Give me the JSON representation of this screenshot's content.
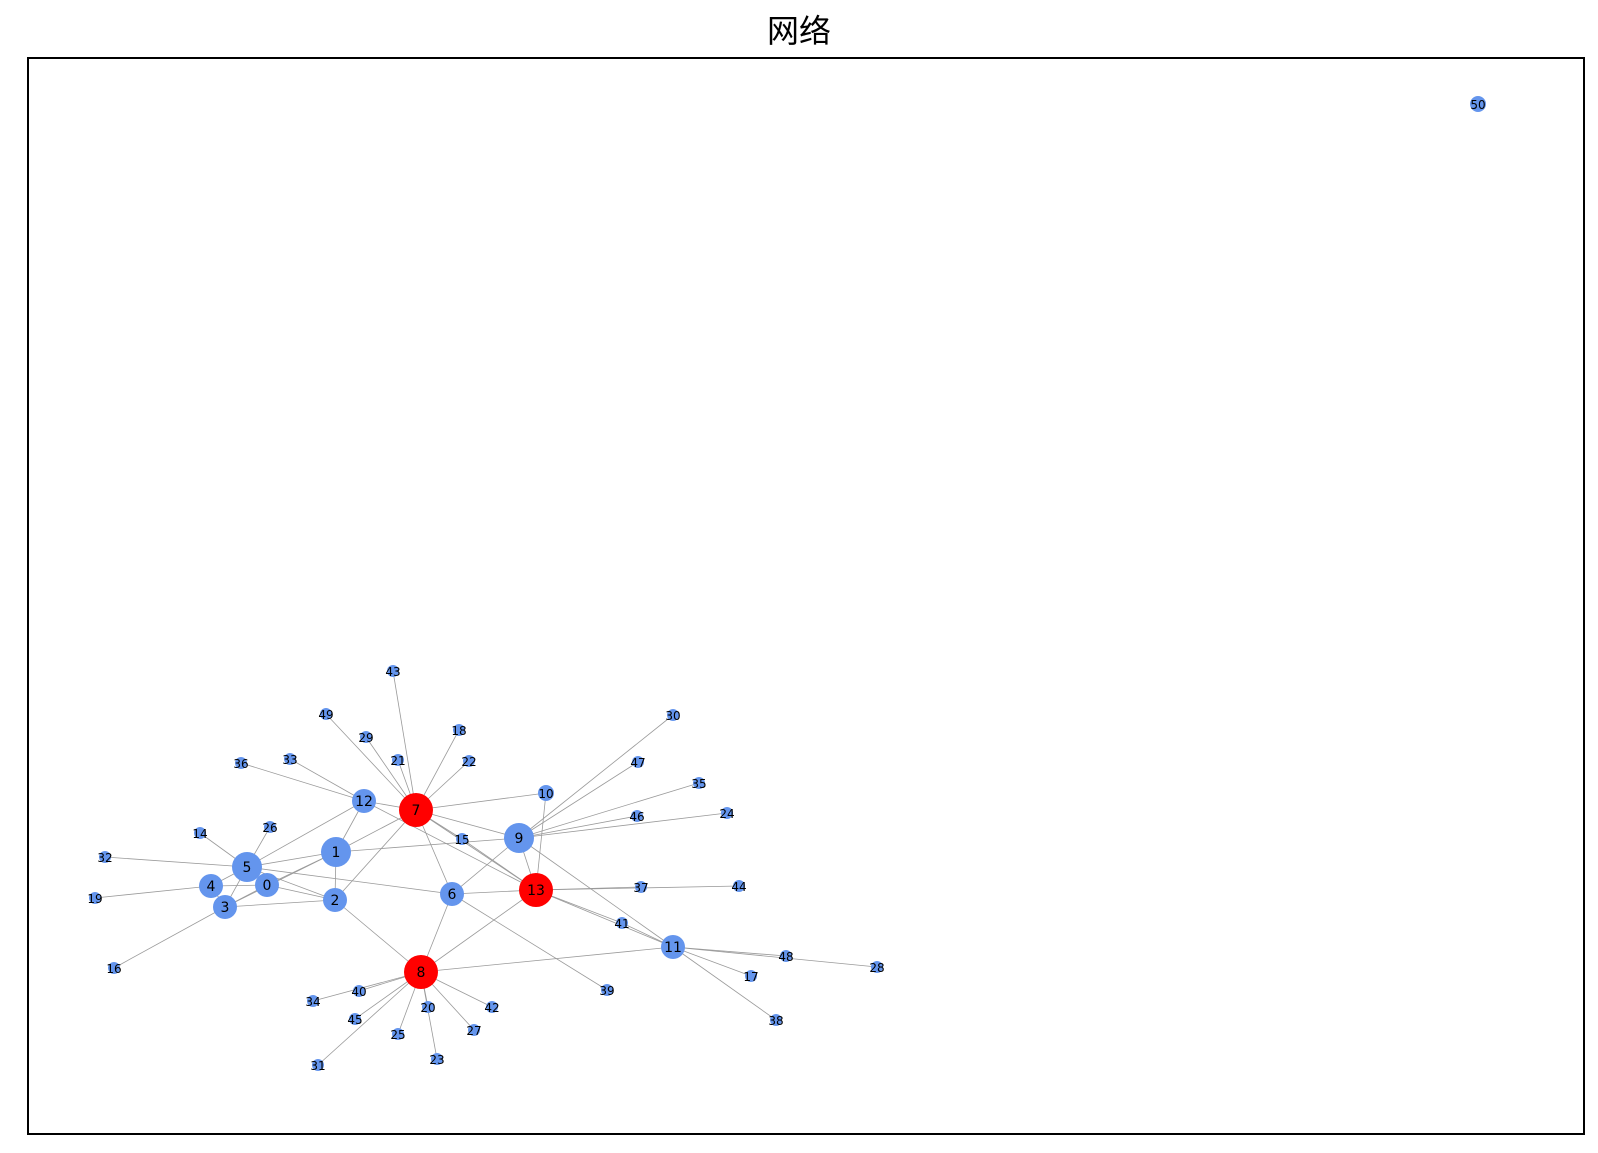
{
  "title": "网络",
  "colors": {
    "default_node": "#6495ED",
    "highlight_node": "#FF0000",
    "edge": "#9a9a9a"
  },
  "nodes": [
    {
      "id": "0",
      "size": "m",
      "color": "default"
    },
    {
      "id": "1",
      "size": "l",
      "color": "default"
    },
    {
      "id": "2",
      "size": "m",
      "color": "default"
    },
    {
      "id": "3",
      "size": "m",
      "color": "default"
    },
    {
      "id": "4",
      "size": "m",
      "color": "default"
    },
    {
      "id": "5",
      "size": "l",
      "color": "default"
    },
    {
      "id": "6",
      "size": "m",
      "color": "default"
    },
    {
      "id": "7",
      "size": "xl",
      "color": "highlight"
    },
    {
      "id": "8",
      "size": "xl",
      "color": "highlight"
    },
    {
      "id": "9",
      "size": "l",
      "color": "default"
    },
    {
      "id": "10",
      "size": "s",
      "color": "default"
    },
    {
      "id": "11",
      "size": "m",
      "color": "default"
    },
    {
      "id": "12",
      "size": "m",
      "color": "default"
    },
    {
      "id": "13",
      "size": "xl",
      "color": "highlight"
    },
    {
      "id": "14",
      "size": "xs",
      "color": "default"
    },
    {
      "id": "15",
      "size": "xs",
      "color": "default"
    },
    {
      "id": "16",
      "size": "xs",
      "color": "default"
    },
    {
      "id": "17",
      "size": "xs",
      "color": "default"
    },
    {
      "id": "18",
      "size": "xs",
      "color": "default"
    },
    {
      "id": "19",
      "size": "xs",
      "color": "default"
    },
    {
      "id": "20",
      "size": "xs",
      "color": "default"
    },
    {
      "id": "21",
      "size": "xs",
      "color": "default"
    },
    {
      "id": "22",
      "size": "xs",
      "color": "default"
    },
    {
      "id": "23",
      "size": "xs",
      "color": "default"
    },
    {
      "id": "24",
      "size": "xs",
      "color": "default"
    },
    {
      "id": "25",
      "size": "xs",
      "color": "default"
    },
    {
      "id": "26",
      "size": "xs",
      "color": "default"
    },
    {
      "id": "27",
      "size": "xs",
      "color": "default"
    },
    {
      "id": "28",
      "size": "xs",
      "color": "default"
    },
    {
      "id": "29",
      "size": "xs",
      "color": "default"
    },
    {
      "id": "30",
      "size": "xs",
      "color": "default"
    },
    {
      "id": "31",
      "size": "xs",
      "color": "default"
    },
    {
      "id": "32",
      "size": "xs",
      "color": "default"
    },
    {
      "id": "33",
      "size": "xs",
      "color": "default"
    },
    {
      "id": "34",
      "size": "xs",
      "color": "default"
    },
    {
      "id": "35",
      "size": "xs",
      "color": "default"
    },
    {
      "id": "36",
      "size": "xs",
      "color": "default"
    },
    {
      "id": "37",
      "size": "xs",
      "color": "default"
    },
    {
      "id": "38",
      "size": "xs",
      "color": "default"
    },
    {
      "id": "39",
      "size": "xs",
      "color": "default"
    },
    {
      "id": "40",
      "size": "xs",
      "color": "default"
    },
    {
      "id": "41",
      "size": "xs",
      "color": "default"
    },
    {
      "id": "42",
      "size": "xs",
      "color": "default"
    },
    {
      "id": "43",
      "size": "xs",
      "color": "default"
    },
    {
      "id": "44",
      "size": "xs",
      "color": "default"
    },
    {
      "id": "45",
      "size": "xs",
      "color": "default"
    },
    {
      "id": "46",
      "size": "xs",
      "color": "default"
    },
    {
      "id": "47",
      "size": "xs",
      "color": "default"
    },
    {
      "id": "48",
      "size": "xs",
      "color": "default"
    },
    {
      "id": "49",
      "size": "xs",
      "color": "default"
    },
    {
      "id": "50",
      "size": "s",
      "color": "default"
    }
  ],
  "edges": [
    [
      "0",
      "1"
    ],
    [
      "0",
      "2"
    ],
    [
      "0",
      "4"
    ],
    [
      "0",
      "5"
    ],
    [
      "0",
      "3"
    ],
    [
      "1",
      "2"
    ],
    [
      "1",
      "3"
    ],
    [
      "1",
      "5"
    ],
    [
      "1",
      "7"
    ],
    [
      "1",
      "9"
    ],
    [
      "1",
      "12"
    ],
    [
      "2",
      "3"
    ],
    [
      "2",
      "5"
    ],
    [
      "2",
      "7"
    ],
    [
      "2",
      "8"
    ],
    [
      "3",
      "4"
    ],
    [
      "3",
      "5"
    ],
    [
      "3",
      "16"
    ],
    [
      "4",
      "5"
    ],
    [
      "4",
      "19"
    ],
    [
      "5",
      "6"
    ],
    [
      "5",
      "14"
    ],
    [
      "5",
      "32"
    ],
    [
      "5",
      "26"
    ],
    [
      "5",
      "12"
    ],
    [
      "6",
      "7"
    ],
    [
      "6",
      "8"
    ],
    [
      "6",
      "9"
    ],
    [
      "6",
      "13"
    ],
    [
      "6",
      "39"
    ],
    [
      "7",
      "9"
    ],
    [
      "7",
      "10"
    ],
    [
      "7",
      "12"
    ],
    [
      "7",
      "13"
    ],
    [
      "7",
      "15"
    ],
    [
      "7",
      "18"
    ],
    [
      "7",
      "21"
    ],
    [
      "7",
      "22"
    ],
    [
      "7",
      "29"
    ],
    [
      "7",
      "43"
    ],
    [
      "7",
      "49"
    ],
    [
      "8",
      "11"
    ],
    [
      "8",
      "13"
    ],
    [
      "8",
      "20"
    ],
    [
      "8",
      "23"
    ],
    [
      "8",
      "25"
    ],
    [
      "8",
      "27"
    ],
    [
      "8",
      "31"
    ],
    [
      "8",
      "34"
    ],
    [
      "8",
      "40"
    ],
    [
      "8",
      "42"
    ],
    [
      "8",
      "45"
    ],
    [
      "9",
      "11"
    ],
    [
      "9",
      "13"
    ],
    [
      "9",
      "24"
    ],
    [
      "9",
      "30"
    ],
    [
      "9",
      "35"
    ],
    [
      "9",
      "46"
    ],
    [
      "9",
      "47"
    ],
    [
      "10",
      "13"
    ],
    [
      "11",
      "17"
    ],
    [
      "11",
      "28"
    ],
    [
      "11",
      "38"
    ],
    [
      "11",
      "41"
    ],
    [
      "11",
      "48"
    ],
    [
      "11",
      "13"
    ],
    [
      "12",
      "13"
    ],
    [
      "12",
      "33"
    ],
    [
      "12",
      "36"
    ],
    [
      "13",
      "37"
    ],
    [
      "13",
      "41"
    ],
    [
      "13",
      "44"
    ],
    [
      "13",
      "15"
    ]
  ]
}
